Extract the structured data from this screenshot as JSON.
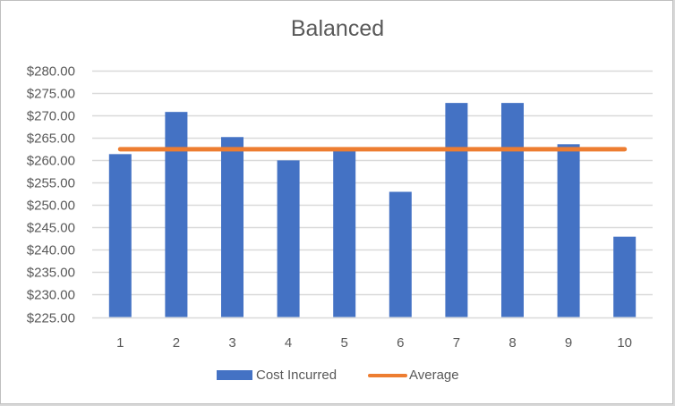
{
  "chart_data": {
    "type": "bar",
    "title": "Balanced",
    "xlabel": "",
    "ylabel": "",
    "categories": [
      "1",
      "2",
      "3",
      "4",
      "5",
      "6",
      "7",
      "8",
      "9",
      "10"
    ],
    "series": [
      {
        "name": "Cost Incurred",
        "type": "bar",
        "color": "#4472c4",
        "values": [
          261.3,
          270.7,
          265.1,
          259.9,
          262.0,
          252.9,
          272.7,
          272.7,
          263.5,
          242.9
        ]
      },
      {
        "name": "Average",
        "type": "line",
        "color": "#ed7d31",
        "values": [
          262.4,
          262.4,
          262.4,
          262.4,
          262.4,
          262.4,
          262.4,
          262.4,
          262.4,
          262.4
        ]
      }
    ],
    "ylim": [
      225,
      280
    ],
    "yticks": [
      "$280.00",
      "$275.00",
      "$270.00",
      "$265.00",
      "$260.00",
      "$255.00",
      "$250.00",
      "$245.00",
      "$240.00",
      "$235.00",
      "$230.00",
      "$225.00"
    ],
    "ytick_values": [
      280,
      275,
      270,
      265,
      260,
      255,
      250,
      245,
      240,
      235,
      230,
      225
    ],
    "grid": true,
    "legend_position": "bottom"
  },
  "legend": {
    "items": [
      {
        "label": "Cost Incurred"
      },
      {
        "label": "Average"
      }
    ]
  }
}
